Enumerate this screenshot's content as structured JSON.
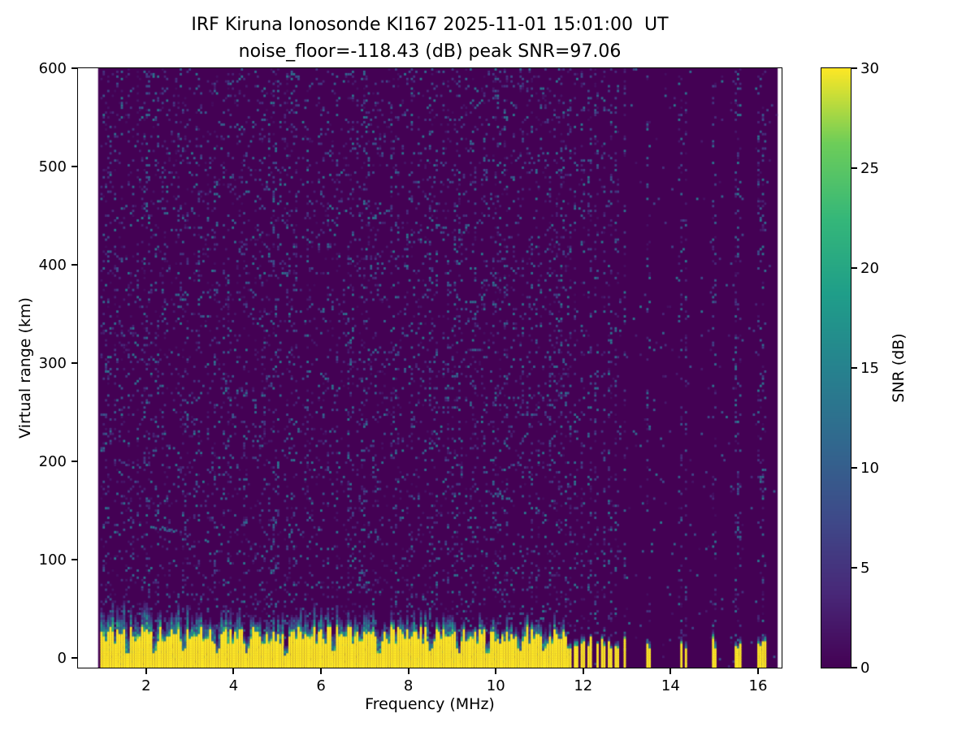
{
  "chart_data": {
    "type": "heatmap",
    "title": "IRF Kiruna Ionosonde KI167 2025-11-01 15:01:00  UT",
    "subtitle": "noise_floor=-118.43 (dB) peak SNR=97.06",
    "xlabel": "Frequency (MHz)",
    "ylabel": "Virtual range (km)",
    "xlim": [
      0.44,
      16.54
    ],
    "ylim": [
      -10,
      600
    ],
    "xticks": [
      2,
      4,
      6,
      8,
      10,
      12,
      14,
      16
    ],
    "yticks": [
      0,
      100,
      200,
      300,
      400,
      500,
      600
    ],
    "grid": false,
    "colorbar": {
      "label": "SNR (dB)",
      "min": 0,
      "max": 30,
      "ticks": [
        0,
        5,
        10,
        15,
        20,
        25,
        30
      ],
      "colormap": "viridis"
    },
    "noise_floor_db": -118.43,
    "peak_snr_db": 97.06,
    "data_extent": {
      "freq_mhz": [
        0.9,
        16.45
      ],
      "range_km": [
        -10,
        600
      ]
    },
    "ground_clutter": {
      "continuous_band_mhz": [
        0.95,
        11.62
      ],
      "saturated_top_km_range": [
        14,
        32
      ],
      "fringe_extent_km": [
        8,
        30
      ],
      "notch_freqs_mhz": [
        1.55,
        2.2,
        2.85,
        3.65,
        4.3,
        5.2,
        6.3,
        7.35,
        8.5,
        9.15,
        9.8,
        10.55,
        11.1
      ],
      "stripe_freqs_mhz": [
        11.7,
        11.85,
        12.0,
        12.15,
        12.3,
        12.45,
        12.62,
        12.78,
        12.95,
        13.5,
        14.22,
        14.35,
        15.0,
        15.5,
        15.55,
        16.05,
        16.12
      ],
      "stripe_top_km": 16
    },
    "weak_echo_trace": {
      "freq_mhz": [
        2.1,
        3.6
      ],
      "range_km": [
        136,
        118
      ]
    },
    "background_speckle": {
      "continuous_density": 0.2,
      "sparse_density": 0.02,
      "stripe_density": 0.22,
      "max_snr_db": 14
    },
    "render_seed": 7,
    "colors": {
      "background": "#ffffff",
      "cmap_low": "#440154",
      "cmap_high": "#fde725",
      "axis": "#000000"
    }
  }
}
